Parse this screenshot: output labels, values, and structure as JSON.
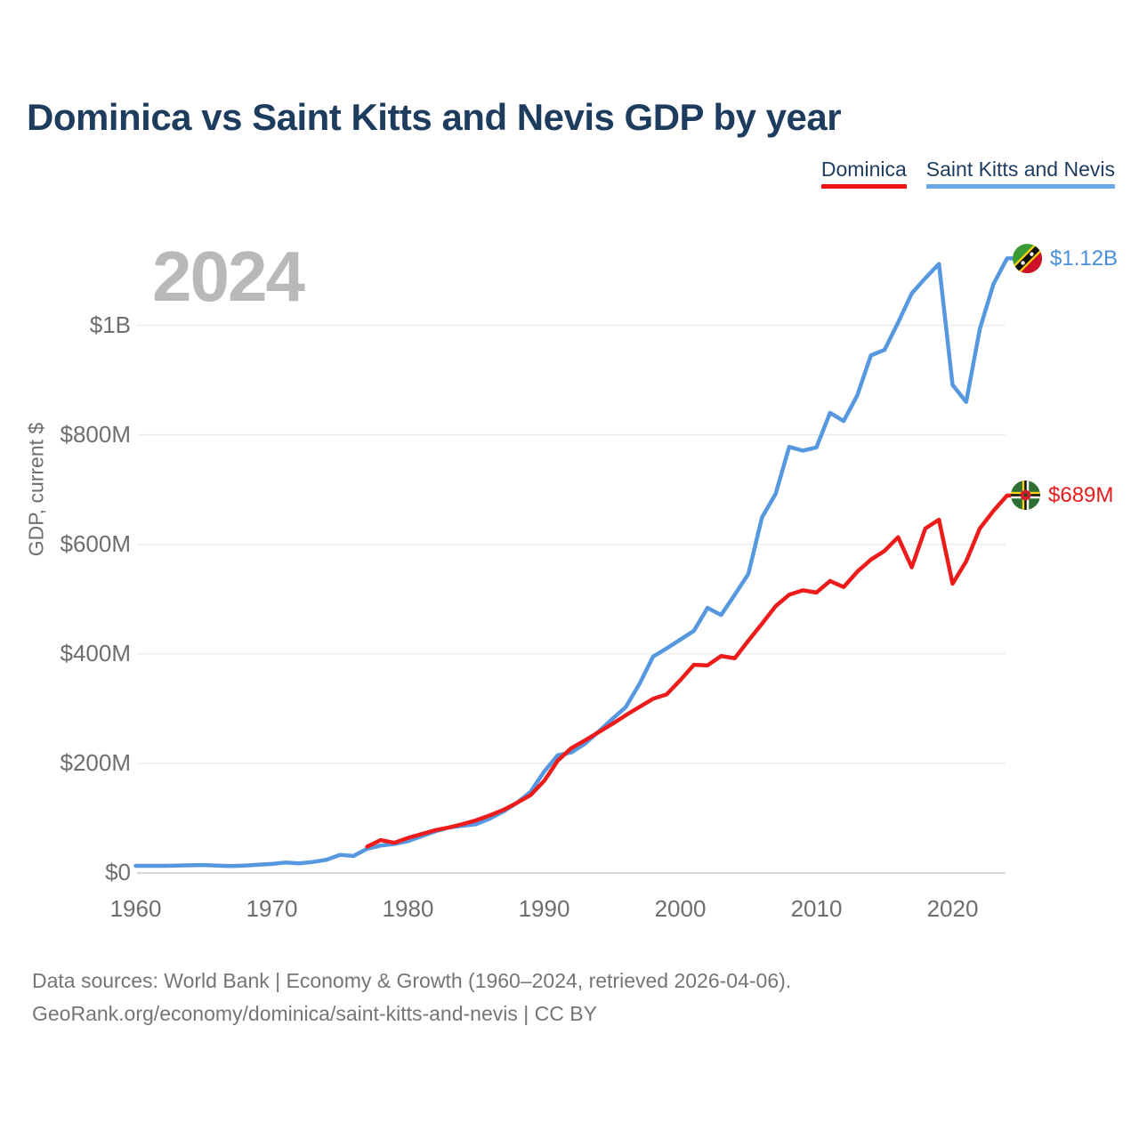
{
  "title": "Dominica vs Saint Kitts and Nevis GDP by year",
  "watermark": "2024",
  "y_axis_title": "GDP, current $",
  "legend": {
    "items": [
      {
        "label": "Dominica",
        "color": "#f01212"
      },
      {
        "label": "Saint Kitts and Nevis",
        "color": "#66a9e6"
      }
    ]
  },
  "footer": {
    "line1": "Data sources: World Bank | Economy & Growth (1960–2024, retrieved 2026-04-06).",
    "line2": "GeoRank.org/economy/dominica/saint-kitts-and-nevis | CC BY"
  },
  "chart_data": {
    "type": "line",
    "title": "Dominica vs Saint Kitts and Nevis GDP by year",
    "ylabel": "GDP, current $",
    "units": "USD millions, current",
    "x_range": [
      1960,
      2024
    ],
    "ylim": [
      0,
      1160
    ],
    "grid": "horizontal",
    "legend_position": "top-right",
    "x_ticks": [
      1960,
      1970,
      1980,
      1990,
      2000,
      2010,
      2020
    ],
    "y_ticks": [
      {
        "label": "$0",
        "value": 0
      },
      {
        "label": "$200M",
        "value": 200
      },
      {
        "label": "$400M",
        "value": 400
      },
      {
        "label": "$600M",
        "value": 600
      },
      {
        "label": "$800M",
        "value": 800
      },
      {
        "label": "$1B",
        "value": 1000
      }
    ],
    "series": [
      {
        "name": "Dominica",
        "color": "#ee1b1b",
        "flag": "dominica-flag",
        "start_year": 1977,
        "end_label": "$689M",
        "values": [
          48,
          60,
          55,
          64,
          71,
          78,
          83,
          89,
          96,
          105,
          115,
          128,
          142,
          168,
          205,
          228,
          242,
          257,
          272,
          288,
          303,
          318,
          326,
          352,
          380,
          379,
          396,
          392,
          424,
          455,
          487,
          508,
          516,
          512,
          533,
          522,
          550,
          572,
          588,
          613,
          558,
          629,
          645,
          528,
          569,
          629,
          661,
          689
        ]
      },
      {
        "name": "Saint Kitts and Nevis",
        "color": "#5598e0",
        "flag": "saint-kitts-and-nevis-flag",
        "start_year": 1960,
        "end_label": "$1.12B",
        "values": [
          13,
          13,
          13,
          13.5,
          14,
          14.5,
          13.5,
          12.5,
          13.5,
          15,
          16.5,
          19,
          17.5,
          20,
          24,
          33,
          31,
          44,
          50,
          53,
          58,
          67,
          76,
          83,
          86,
          89,
          99,
          112,
          128,
          148,
          185,
          215,
          220,
          236,
          258,
          281,
          303,
          345,
          395,
          410,
          426,
          442,
          484,
          471,
          508,
          546,
          649,
          692,
          778,
          771,
          777,
          840,
          825,
          872,
          945,
          955,
          1005,
          1058,
          1086,
          1112,
          891,
          860,
          993,
          1075,
          1122
        ]
      }
    ]
  }
}
